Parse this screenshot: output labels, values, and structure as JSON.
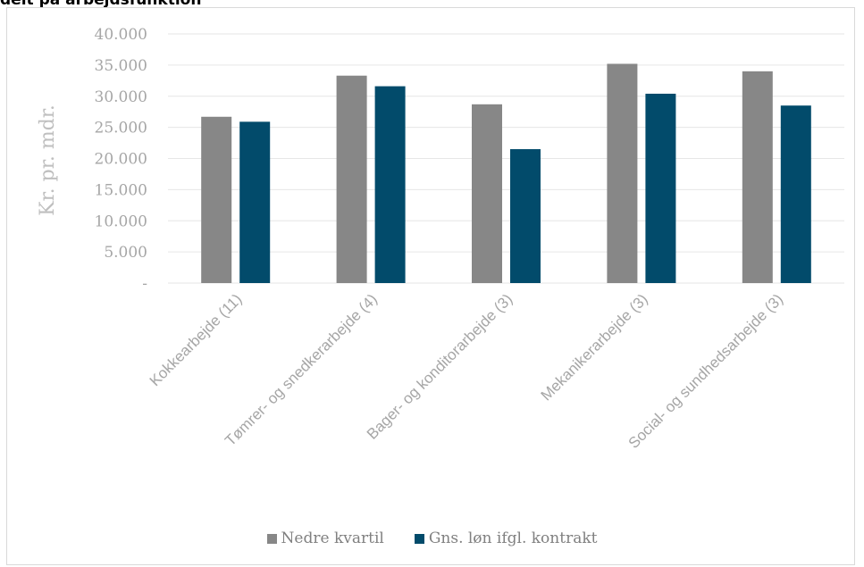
{
  "header": {
    "title_fragment": "delt på arbejdsfunktion"
  },
  "chart_data": {
    "type": "bar",
    "categories": [
      "Kokkearbejde (11)",
      "Tømrer- og snedkerarbejde (4)",
      "Bager- og konditorarbejde (3)",
      "Mekanikerarbejde (3)",
      "Social- og sundhedsarbejde (3)"
    ],
    "series": [
      {
        "name": "Nedre kvartil",
        "color": "#878787",
        "values": [
          26700,
          33300,
          28700,
          35200,
          34000
        ]
      },
      {
        "name": "Gns. løn ifgl. kontrakt",
        "color": "#024b6b",
        "values": [
          25900,
          31600,
          21500,
          30400,
          28500
        ]
      }
    ],
    "ylabel": "Kr. pr. mdr.",
    "xlabel": "",
    "ylim": [
      0,
      40000
    ],
    "yticks": [
      0,
      5000,
      10000,
      15000,
      20000,
      25000,
      30000,
      35000,
      40000
    ],
    "ytick_labels": [
      "-",
      "5.000",
      "10.000",
      "15.000",
      "20.000",
      "25.000",
      "30.000",
      "35.000",
      "40.000"
    ],
    "grid": true,
    "legend": "bottom"
  }
}
